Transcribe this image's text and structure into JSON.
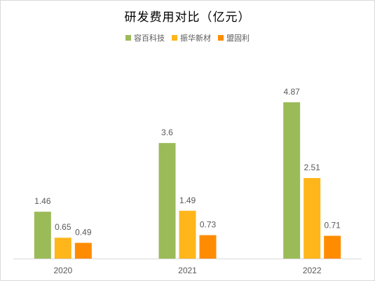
{
  "chart_data": {
    "type": "bar",
    "title": "研发费用对比（亿元）",
    "categories": [
      "2020",
      "2021",
      "2022"
    ],
    "series": [
      {
        "name": "容百科技",
        "color": "#9BBB59",
        "values": [
          1.46,
          3.6,
          4.87
        ]
      },
      {
        "name": "振华新材",
        "color": "#FFB61B",
        "values": [
          0.65,
          1.49,
          2.51
        ]
      },
      {
        "name": "盟固利",
        "color": "#FF8C00",
        "values": [
          0.49,
          0.73,
          0.71
        ]
      }
    ],
    "data_labels": [
      [
        "1.46",
        "3.6",
        "4.87"
      ],
      [
        "0.65",
        "1.49",
        "2.51"
      ],
      [
        "0.49",
        "0.73",
        "0.71"
      ]
    ],
    "xlabel": "",
    "ylabel": "",
    "ylim": [
      0,
      5.2
    ],
    "grid": false,
    "legend_position": "top-center"
  }
}
